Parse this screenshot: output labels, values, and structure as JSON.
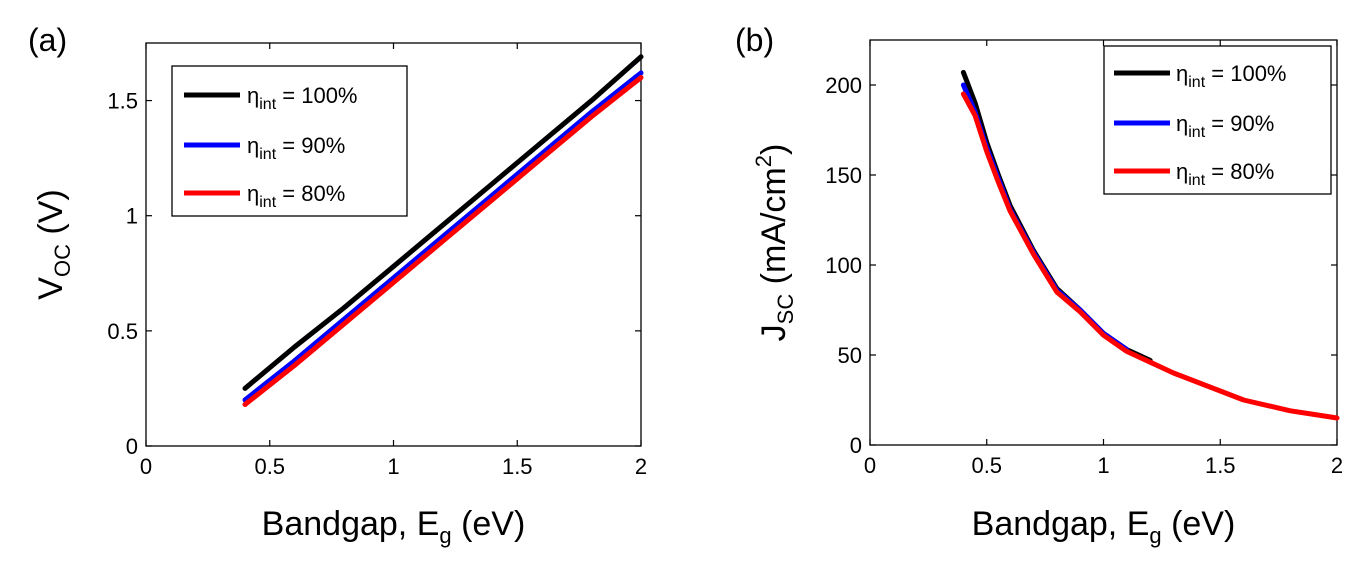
{
  "chart_data": [
    {
      "panel_label": "(a)",
      "type": "line",
      "xlabel": {
        "main": "Bandgap, E",
        "sub": "g",
        "tail": " (eV)"
      },
      "ylabel": {
        "main": "V",
        "sub": "OC",
        "tail": " (V)"
      },
      "xlim": [
        0,
        2
      ],
      "ylim": [
        0,
        1.75
      ],
      "xticks": [
        0,
        0.5,
        1,
        1.5,
        2
      ],
      "xtick_labels": [
        "0",
        "0.5",
        "1",
        "1.5",
        "2"
      ],
      "yticks": [
        0,
        0.5,
        1,
        1.5
      ],
      "ytick_labels": [
        "0",
        "0.5",
        "1",
        "1.5"
      ],
      "grid": false,
      "legend_position": "top-left",
      "series": [
        {
          "name_main": "η",
          "name_sub": "int",
          "name_tail": " = 100%",
          "color": "#000000",
          "x": [
            0.4,
            0.6,
            0.8,
            1.0,
            1.2,
            1.4,
            1.6,
            1.8,
            2.0
          ],
          "y": [
            0.25,
            0.43,
            0.6,
            0.78,
            0.96,
            1.14,
            1.32,
            1.5,
            1.69
          ]
        },
        {
          "name_main": "η",
          "name_sub": "int",
          "name_tail": " = 90%",
          "color": "#0000ff",
          "x": [
            0.4,
            0.6,
            0.8,
            1.0,
            1.2,
            1.4,
            1.6,
            1.8,
            2.0
          ],
          "y": [
            0.2,
            0.37,
            0.55,
            0.73,
            0.91,
            1.09,
            1.27,
            1.45,
            1.62
          ]
        },
        {
          "name_main": "η",
          "name_sub": "int",
          "name_tail": " = 80%",
          "color": "#ff0000",
          "x": [
            0.4,
            0.6,
            0.8,
            1.0,
            1.2,
            1.4,
            1.6,
            1.8,
            2.0
          ],
          "y": [
            0.18,
            0.35,
            0.53,
            0.71,
            0.89,
            1.07,
            1.25,
            1.43,
            1.6
          ]
        }
      ]
    },
    {
      "panel_label": "(b)",
      "type": "line",
      "xlabel": {
        "main": "Bandgap, E",
        "sub": "g",
        "tail": " (eV)"
      },
      "ylabel": {
        "main": "J",
        "sub": "SC",
        "tail": " (mA/cm",
        "sup": "2",
        "tail2": ")"
      },
      "xlim": [
        0,
        2
      ],
      "ylim": [
        0,
        225
      ],
      "xticks": [
        0,
        0.5,
        1,
        1.5,
        2
      ],
      "xtick_labels": [
        "0",
        "0.5",
        "1",
        "1.5",
        "2"
      ],
      "yticks": [
        0,
        50,
        100,
        150,
        200
      ],
      "ytick_labels": [
        "0",
        "50",
        "100",
        "150",
        "200"
      ],
      "grid": false,
      "legend_position": "top-right",
      "series": [
        {
          "name_main": "η",
          "name_sub": "int",
          "name_tail": " = 100%",
          "color": "#000000",
          "x": [
            0.4,
            0.45,
            0.5,
            0.55,
            0.6,
            0.7,
            0.8,
            0.9,
            1.0,
            1.1,
            1.2
          ],
          "y": [
            207,
            190,
            168,
            150,
            133,
            108,
            87,
            75,
            62,
            53,
            47
          ]
        },
        {
          "name_main": "η",
          "name_sub": "int",
          "name_tail": " = 90%",
          "color": "#0000ff",
          "x": [
            0.4,
            0.45,
            0.5,
            0.55,
            0.6,
            0.7,
            0.8,
            0.9,
            1.0,
            1.1
          ],
          "y": [
            200,
            185,
            165,
            148,
            131,
            107,
            86,
            75,
            62,
            53
          ]
        },
        {
          "name_main": "η",
          "name_sub": "int",
          "name_tail": " = 80%",
          "color": "#ff0000",
          "x": [
            0.4,
            0.45,
            0.5,
            0.55,
            0.6,
            0.7,
            0.8,
            0.9,
            1.0,
            1.1,
            1.2,
            1.3,
            1.4,
            1.5,
            1.6,
            1.7,
            1.8,
            1.9,
            2.0
          ],
          "y": [
            195,
            183,
            163,
            146,
            130,
            106,
            85,
            74,
            61,
            52,
            46,
            40,
            35,
            30,
            25,
            22,
            19,
            17,
            15
          ]
        }
      ]
    }
  ]
}
